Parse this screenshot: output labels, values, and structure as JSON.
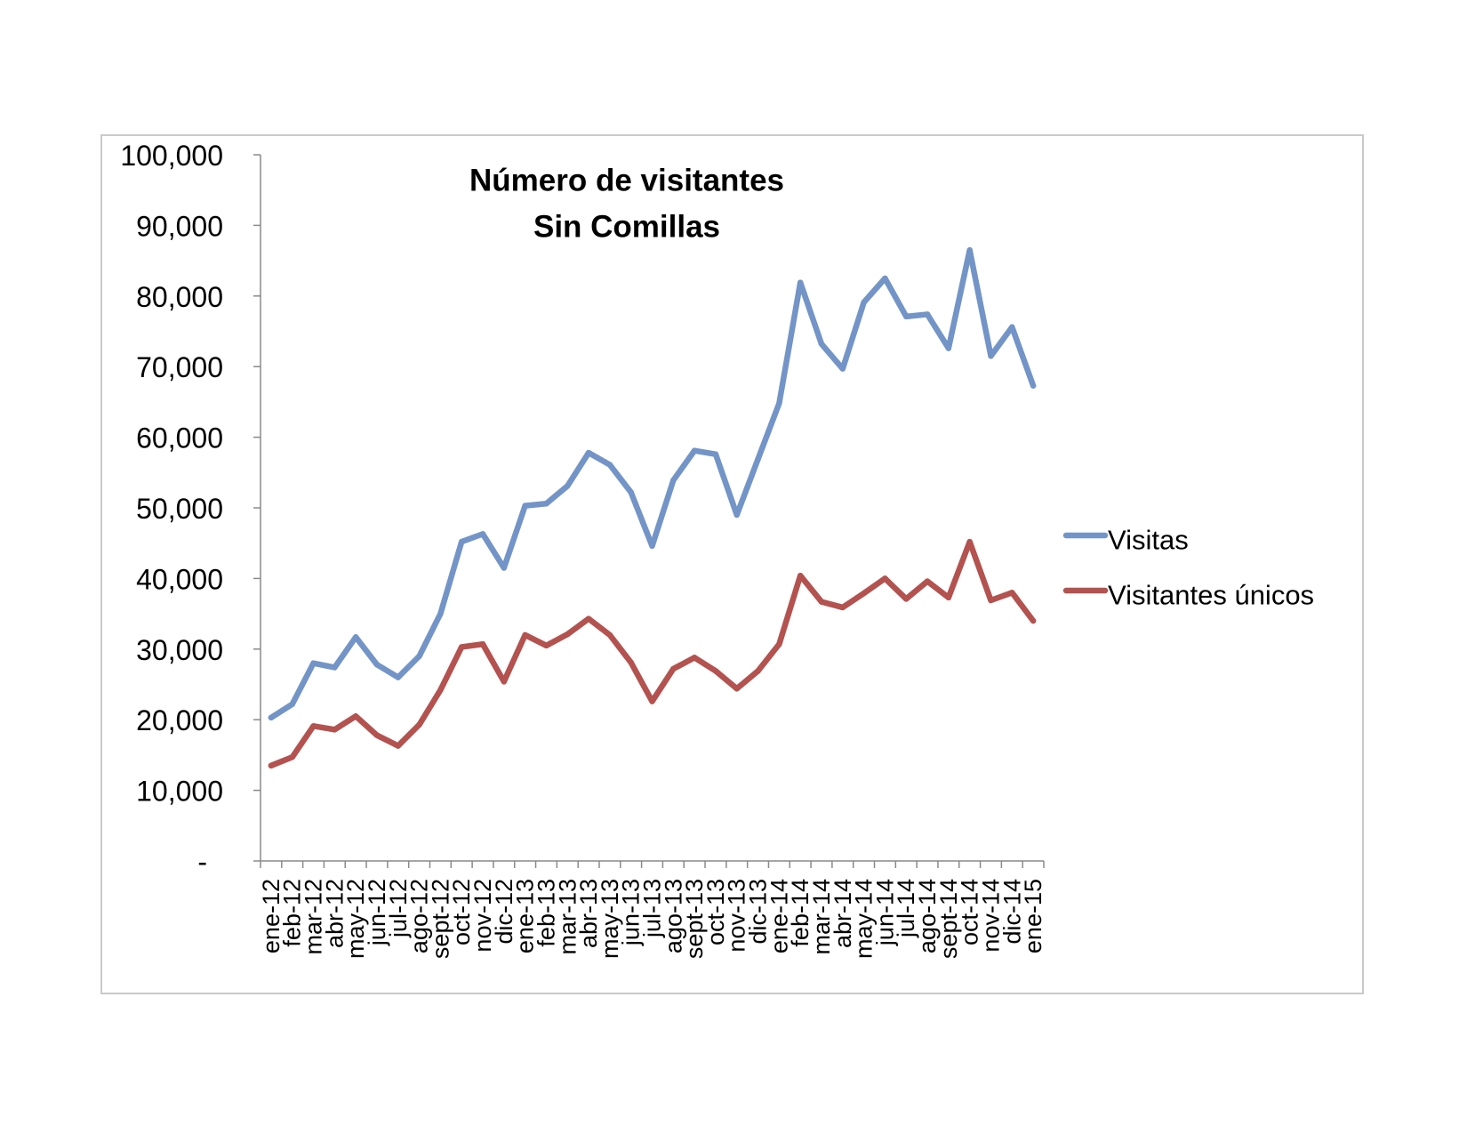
{
  "chart_data": {
    "type": "line",
    "title": [
      "Número de visitantes",
      "Sin Comillas"
    ],
    "categories": [
      "ene-12",
      "feb-12",
      "mar-12",
      "abr-12",
      "may-12",
      "jun-12",
      "jul-12",
      "ago-12",
      "sept-12",
      "oct-12",
      "nov-12",
      "dic-12",
      "ene-13",
      "feb-13",
      "mar-13",
      "abr-13",
      "may-13",
      "jun-13",
      "jul-13",
      "ago-13",
      "sept-13",
      "oct-13",
      "nov-13",
      "dic-13",
      "ene-14",
      "feb-14",
      "mar-14",
      "abr-14",
      "may-14",
      "jun-14",
      "jul-14",
      "ago-14",
      "sept-14",
      "oct-14",
      "nov-14",
      "dic-14",
      "ene-15"
    ],
    "series": [
      {
        "name": "Visitas",
        "color": "#7394C7",
        "values": [
          20300,
          22200,
          28000,
          27400,
          31700,
          27800,
          26000,
          29000,
          35000,
          45200,
          46300,
          41500,
          50300,
          50600,
          53100,
          57800,
          56100,
          52200,
          44600,
          53900,
          58100,
          57600,
          49000,
          56900,
          64800,
          81900,
          73200,
          69700,
          79100,
          82500,
          77100,
          77400,
          72600,
          86500,
          71500,
          75600,
          67300
        ]
      },
      {
        "name": "Visitantes únicos",
        "color": "#B3524F",
        "values": [
          13500,
          14700,
          19100,
          18600,
          20500,
          17800,
          16300,
          19300,
          24200,
          30300,
          30700,
          25400,
          32000,
          30500,
          32100,
          34300,
          32000,
          28100,
          22600,
          27200,
          28800,
          26900,
          24400,
          26900,
          30700,
          40400,
          36700,
          35900,
          37900,
          40000,
          37100,
          39600,
          37300,
          45200,
          36900,
          38000,
          34000
        ]
      }
    ],
    "ylim": [
      0,
      100000
    ],
    "yticks": [
      0,
      10000,
      20000,
      30000,
      40000,
      50000,
      60000,
      70000,
      80000,
      90000,
      100000
    ],
    "ytick_labels": [
      "-",
      "10,000",
      "20,000",
      "30,000",
      "40,000",
      "50,000",
      "60,000",
      "70,000",
      "80,000",
      "90,000",
      "100,000"
    ],
    "grid": false,
    "legend_position": "right"
  }
}
